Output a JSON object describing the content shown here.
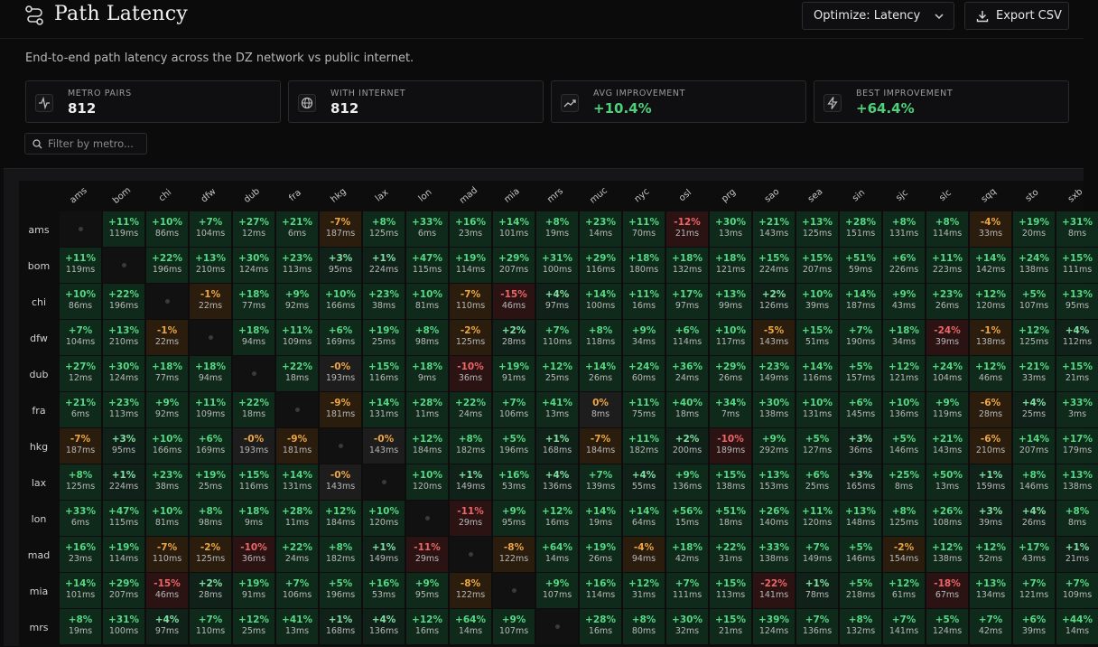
{
  "header": {
    "title": "Path Latency",
    "optimize_label": "Optimize: Latency",
    "export_label": "Export CSV"
  },
  "subtitle": "End-to-end path latency across the DZ network vs public internet.",
  "stats": [
    {
      "label": "METRO PAIRS",
      "value": "812",
      "icon": "activity-icon",
      "tone": "plain"
    },
    {
      "label": "WITH INTERNET",
      "value": "812",
      "icon": "globe-icon",
      "tone": "plain"
    },
    {
      "label": "AVG IMPROVEMENT",
      "value": "+10.4%",
      "icon": "trending-up-icon",
      "tone": "positive"
    },
    {
      "label": "BEST IMPROVEMENT",
      "value": "+64.4%",
      "icon": "zap-icon",
      "tone": "positive"
    }
  ],
  "filter": {
    "placeholder": "Filter by metro..."
  },
  "colors": {
    "positive": "#54d882",
    "warning": "#f0a640",
    "negative": "#f06565"
  },
  "matrix": {
    "columns": [
      "ams",
      "bom",
      "chi",
      "dfw",
      "dub",
      "fra",
      "hkg",
      "lax",
      "lon",
      "mad",
      "mia",
      "mrs",
      "muc",
      "nyc",
      "osl",
      "prg",
      "sao",
      "sea",
      "sin",
      "sjc",
      "slc",
      "sqq",
      "sto",
      "sxb"
    ],
    "rows": [
      {
        "metro": "ams",
        "cells": [
          null,
          [
            "+11%",
            "119ms"
          ],
          [
            "+10%",
            "86ms"
          ],
          [
            "+7%",
            "104ms"
          ],
          [
            "+27%",
            "12ms"
          ],
          [
            "+21%",
            "6ms"
          ],
          [
            "-7%",
            "187ms"
          ],
          [
            "+8%",
            "125ms"
          ],
          [
            "+33%",
            "6ms"
          ],
          [
            "+16%",
            "23ms"
          ],
          [
            "+14%",
            "101ms"
          ],
          [
            "+8%",
            "19ms"
          ],
          [
            "+23%",
            "14ms"
          ],
          [
            "+11%",
            "70ms"
          ],
          [
            "-12%",
            "21ms"
          ],
          [
            "+30%",
            "13ms"
          ],
          [
            "+21%",
            "143ms"
          ],
          [
            "+13%",
            "125ms"
          ],
          [
            "+28%",
            "151ms"
          ],
          [
            "+8%",
            "131ms"
          ],
          [
            "+8%",
            "114ms"
          ],
          [
            "-4%",
            "33ms"
          ],
          [
            "+19%",
            "20ms"
          ],
          [
            "+31%",
            "8ms"
          ]
        ]
      },
      {
        "metro": "bom",
        "cells": [
          [
            "+11%",
            "119ms"
          ],
          null,
          [
            "+22%",
            "196ms"
          ],
          [
            "+13%",
            "210ms"
          ],
          [
            "+30%",
            "124ms"
          ],
          [
            "+23%",
            "113ms"
          ],
          [
            "+3%",
            "95ms"
          ],
          [
            "+1%",
            "224ms"
          ],
          [
            "+47%",
            "115ms"
          ],
          [
            "+19%",
            "114ms"
          ],
          [
            "+29%",
            "207ms"
          ],
          [
            "+31%",
            "100ms"
          ],
          [
            "+29%",
            "116ms"
          ],
          [
            "+18%",
            "180ms"
          ],
          [
            "+18%",
            "132ms"
          ],
          [
            "+18%",
            "121ms"
          ],
          [
            "+15%",
            "224ms"
          ],
          [
            "+15%",
            "207ms"
          ],
          [
            "+51%",
            "59ms"
          ],
          [
            "+6%",
            "226ms"
          ],
          [
            "+11%",
            "223ms"
          ],
          [
            "+14%",
            "142ms"
          ],
          [
            "+24%",
            "138ms"
          ],
          [
            "+15%",
            "111ms"
          ]
        ]
      },
      {
        "metro": "chi",
        "cells": [
          [
            "+10%",
            "86ms"
          ],
          [
            "+22%",
            "196ms"
          ],
          null,
          [
            "-1%",
            "22ms"
          ],
          [
            "+18%",
            "77ms"
          ],
          [
            "+9%",
            "92ms"
          ],
          [
            "+10%",
            "166ms"
          ],
          [
            "+23%",
            "38ms"
          ],
          [
            "+10%",
            "81ms"
          ],
          [
            "-7%",
            "110ms"
          ],
          [
            "-15%",
            "46ms"
          ],
          [
            "+4%",
            "97ms"
          ],
          [
            "+14%",
            "100ms"
          ],
          [
            "+11%",
            "16ms"
          ],
          [
            "+17%",
            "97ms"
          ],
          [
            "+13%",
            "99ms"
          ],
          [
            "+2%",
            "126ms"
          ],
          [
            "+10%",
            "39ms"
          ],
          [
            "+14%",
            "187ms"
          ],
          [
            "+9%",
            "43ms"
          ],
          [
            "+23%",
            "26ms"
          ],
          [
            "+12%",
            "120ms"
          ],
          [
            "+5%",
            "107ms"
          ],
          [
            "+13%",
            "95ms"
          ]
        ]
      },
      {
        "metro": "dfw",
        "cells": [
          [
            "+7%",
            "104ms"
          ],
          [
            "+13%",
            "210ms"
          ],
          [
            "-1%",
            "22ms"
          ],
          null,
          [
            "+18%",
            "94ms"
          ],
          [
            "+11%",
            "109ms"
          ],
          [
            "+6%",
            "169ms"
          ],
          [
            "+19%",
            "25ms"
          ],
          [
            "+8%",
            "98ms"
          ],
          [
            "-2%",
            "125ms"
          ],
          [
            "+2%",
            "28ms"
          ],
          [
            "+7%",
            "110ms"
          ],
          [
            "+8%",
            "118ms"
          ],
          [
            "+9%",
            "34ms"
          ],
          [
            "+6%",
            "114ms"
          ],
          [
            "+10%",
            "117ms"
          ],
          [
            "-5%",
            "143ms"
          ],
          [
            "+15%",
            "51ms"
          ],
          [
            "+7%",
            "190ms"
          ],
          [
            "+18%",
            "34ms"
          ],
          [
            "-24%",
            "39ms"
          ],
          [
            "-1%",
            "138ms"
          ],
          [
            "+12%",
            "125ms"
          ],
          [
            "+4%",
            "112ms"
          ]
        ]
      },
      {
        "metro": "dub",
        "cells": [
          [
            "+27%",
            "12ms"
          ],
          [
            "+30%",
            "124ms"
          ],
          [
            "+18%",
            "77ms"
          ],
          [
            "+18%",
            "94ms"
          ],
          null,
          [
            "+22%",
            "18ms"
          ],
          [
            "-0%",
            "193ms"
          ],
          [
            "+15%",
            "116ms"
          ],
          [
            "+18%",
            "9ms"
          ],
          [
            "-10%",
            "36ms"
          ],
          [
            "+19%",
            "91ms"
          ],
          [
            "+12%",
            "25ms"
          ],
          [
            "+14%",
            "26ms"
          ],
          [
            "+24%",
            "60ms"
          ],
          [
            "+36%",
            "24ms"
          ],
          [
            "+29%",
            "26ms"
          ],
          [
            "+23%",
            "149ms"
          ],
          [
            "+14%",
            "116ms"
          ],
          [
            "+5%",
            "157ms"
          ],
          [
            "+12%",
            "121ms"
          ],
          [
            "+24%",
            "104ms"
          ],
          [
            "+12%",
            "46ms"
          ],
          [
            "+21%",
            "33ms"
          ],
          [
            "+15%",
            "21ms"
          ]
        ]
      },
      {
        "metro": "fra",
        "cells": [
          [
            "+21%",
            "6ms"
          ],
          [
            "+23%",
            "113ms"
          ],
          [
            "+9%",
            "92ms"
          ],
          [
            "+11%",
            "109ms"
          ],
          [
            "+22%",
            "18ms"
          ],
          null,
          [
            "-9%",
            "181ms"
          ],
          [
            "+14%",
            "131ms"
          ],
          [
            "+28%",
            "11ms"
          ],
          [
            "+22%",
            "24ms"
          ],
          [
            "+7%",
            "106ms"
          ],
          [
            "+41%",
            "13ms"
          ],
          [
            "0%",
            "8ms"
          ],
          [
            "+11%",
            "75ms"
          ],
          [
            "+40%",
            "18ms"
          ],
          [
            "+34%",
            "7ms"
          ],
          [
            "+30%",
            "138ms"
          ],
          [
            "+10%",
            "131ms"
          ],
          [
            "+6%",
            "145ms"
          ],
          [
            "+10%",
            "136ms"
          ],
          [
            "+9%",
            "119ms"
          ],
          [
            "-6%",
            "28ms"
          ],
          [
            "+4%",
            "25ms"
          ],
          [
            "+33%",
            "3ms"
          ]
        ]
      },
      {
        "metro": "hkg",
        "cells": [
          [
            "-7%",
            "187ms"
          ],
          [
            "+3%",
            "95ms"
          ],
          [
            "+10%",
            "166ms"
          ],
          [
            "+6%",
            "169ms"
          ],
          [
            "-0%",
            "193ms"
          ],
          [
            "-9%",
            "181ms"
          ],
          null,
          [
            "-0%",
            "143ms"
          ],
          [
            "+12%",
            "184ms"
          ],
          [
            "+8%",
            "182ms"
          ],
          [
            "+5%",
            "196ms"
          ],
          [
            "+1%",
            "168ms"
          ],
          [
            "-7%",
            "184ms"
          ],
          [
            "+11%",
            "182ms"
          ],
          [
            "+2%",
            "200ms"
          ],
          [
            "-10%",
            "189ms"
          ],
          [
            "+9%",
            "292ms"
          ],
          [
            "+5%",
            "127ms"
          ],
          [
            "+3%",
            "36ms"
          ],
          [
            "+5%",
            "146ms"
          ],
          [
            "+21%",
            "143ms"
          ],
          [
            "-6%",
            "210ms"
          ],
          [
            "+14%",
            "207ms"
          ],
          [
            "+17%",
            "179ms"
          ]
        ]
      },
      {
        "metro": "lax",
        "cells": [
          [
            "+8%",
            "125ms"
          ],
          [
            "+1%",
            "224ms"
          ],
          [
            "+23%",
            "38ms"
          ],
          [
            "+19%",
            "25ms"
          ],
          [
            "+15%",
            "116ms"
          ],
          [
            "+14%",
            "131ms"
          ],
          [
            "-0%",
            "143ms"
          ],
          null,
          [
            "+10%",
            "120ms"
          ],
          [
            "+1%",
            "149ms"
          ],
          [
            "+16%",
            "53ms"
          ],
          [
            "+4%",
            "136ms"
          ],
          [
            "+7%",
            "139ms"
          ],
          [
            "+4%",
            "55ms"
          ],
          [
            "+9%",
            "136ms"
          ],
          [
            "+15%",
            "138ms"
          ],
          [
            "+13%",
            "153ms"
          ],
          [
            "+6%",
            "25ms"
          ],
          [
            "+3%",
            "165ms"
          ],
          [
            "+25%",
            "8ms"
          ],
          [
            "+50%",
            "13ms"
          ],
          [
            "+1%",
            "159ms"
          ],
          [
            "+8%",
            "146ms"
          ],
          [
            "+13%",
            "138ms"
          ]
        ]
      },
      {
        "metro": "lon",
        "cells": [
          [
            "+33%",
            "6ms"
          ],
          [
            "+47%",
            "115ms"
          ],
          [
            "+10%",
            "81ms"
          ],
          [
            "+8%",
            "98ms"
          ],
          [
            "+18%",
            "9ms"
          ],
          [
            "+28%",
            "11ms"
          ],
          [
            "+12%",
            "184ms"
          ],
          [
            "+10%",
            "120ms"
          ],
          null,
          [
            "-11%",
            "29ms"
          ],
          [
            "+9%",
            "95ms"
          ],
          [
            "+12%",
            "16ms"
          ],
          [
            "+14%",
            "19ms"
          ],
          [
            "+14%",
            "64ms"
          ],
          [
            "+56%",
            "15ms"
          ],
          [
            "+51%",
            "18ms"
          ],
          [
            "+26%",
            "140ms"
          ],
          [
            "+11%",
            "120ms"
          ],
          [
            "+13%",
            "148ms"
          ],
          [
            "+8%",
            "125ms"
          ],
          [
            "+26%",
            "108ms"
          ],
          [
            "+3%",
            "39ms"
          ],
          [
            "+4%",
            "26ms"
          ],
          [
            "+8%",
            "8ms"
          ]
        ]
      },
      {
        "metro": "mad",
        "cells": [
          [
            "+16%",
            "23ms"
          ],
          [
            "+19%",
            "114ms"
          ],
          [
            "-7%",
            "110ms"
          ],
          [
            "-2%",
            "125ms"
          ],
          [
            "-10%",
            "36ms"
          ],
          [
            "+22%",
            "24ms"
          ],
          [
            "+8%",
            "182ms"
          ],
          [
            "+1%",
            "149ms"
          ],
          [
            "-11%",
            "29ms"
          ],
          null,
          [
            "-8%",
            "122ms"
          ],
          [
            "+64%",
            "14ms"
          ],
          [
            "+19%",
            "26ms"
          ],
          [
            "-4%",
            "94ms"
          ],
          [
            "+18%",
            "42ms"
          ],
          [
            "+22%",
            "31ms"
          ],
          [
            "+33%",
            "138ms"
          ],
          [
            "+7%",
            "149ms"
          ],
          [
            "+5%",
            "146ms"
          ],
          [
            "-2%",
            "154ms"
          ],
          [
            "+12%",
            "138ms"
          ],
          [
            "+12%",
            "52ms"
          ],
          [
            "+17%",
            "43ms"
          ],
          [
            "+1%",
            "21ms"
          ]
        ]
      },
      {
        "metro": "mia",
        "cells": [
          [
            "+14%",
            "101ms"
          ],
          [
            "+29%",
            "207ms"
          ],
          [
            "-15%",
            "46ms"
          ],
          [
            "+2%",
            "28ms"
          ],
          [
            "+19%",
            "91ms"
          ],
          [
            "+7%",
            "106ms"
          ],
          [
            "+5%",
            "196ms"
          ],
          [
            "+16%",
            "53ms"
          ],
          [
            "+9%",
            "95ms"
          ],
          [
            "-8%",
            "122ms"
          ],
          null,
          [
            "+9%",
            "107ms"
          ],
          [
            "+16%",
            "114ms"
          ],
          [
            "+12%",
            "31ms"
          ],
          [
            "+7%",
            "111ms"
          ],
          [
            "+15%",
            "113ms"
          ],
          [
            "-22%",
            "141ms"
          ],
          [
            "+1%",
            "78ms"
          ],
          [
            "+5%",
            "218ms"
          ],
          [
            "+12%",
            "61ms"
          ],
          [
            "-18%",
            "67ms"
          ],
          [
            "+13%",
            "134ms"
          ],
          [
            "+7%",
            "121ms"
          ],
          [
            "+7%",
            "109ms"
          ]
        ]
      },
      {
        "metro": "mrs",
        "cells": [
          [
            "+8%",
            "19ms"
          ],
          [
            "+31%",
            "100ms"
          ],
          [
            "+4%",
            "97ms"
          ],
          [
            "+7%",
            "110ms"
          ],
          [
            "+12%",
            "25ms"
          ],
          [
            "+41%",
            "13ms"
          ],
          [
            "+1%",
            "168ms"
          ],
          [
            "+4%",
            "136ms"
          ],
          [
            "+12%",
            "16ms"
          ],
          [
            "+64%",
            "14ms"
          ],
          [
            "+9%",
            "107ms"
          ],
          null,
          [
            "+28%",
            "16ms"
          ],
          [
            "+8%",
            "80ms"
          ],
          [
            "+30%",
            "32ms"
          ],
          [
            "+15%",
            "21ms"
          ],
          [
            "+39%",
            "124ms"
          ],
          [
            "+7%",
            "136ms"
          ],
          [
            "+8%",
            "132ms"
          ],
          [
            "+7%",
            "141ms"
          ],
          [
            "+5%",
            "124ms"
          ],
          [
            "+7%",
            "42ms"
          ],
          [
            "+6%",
            "39ms"
          ],
          [
            "+44%",
            "14ms"
          ]
        ]
      }
    ]
  }
}
